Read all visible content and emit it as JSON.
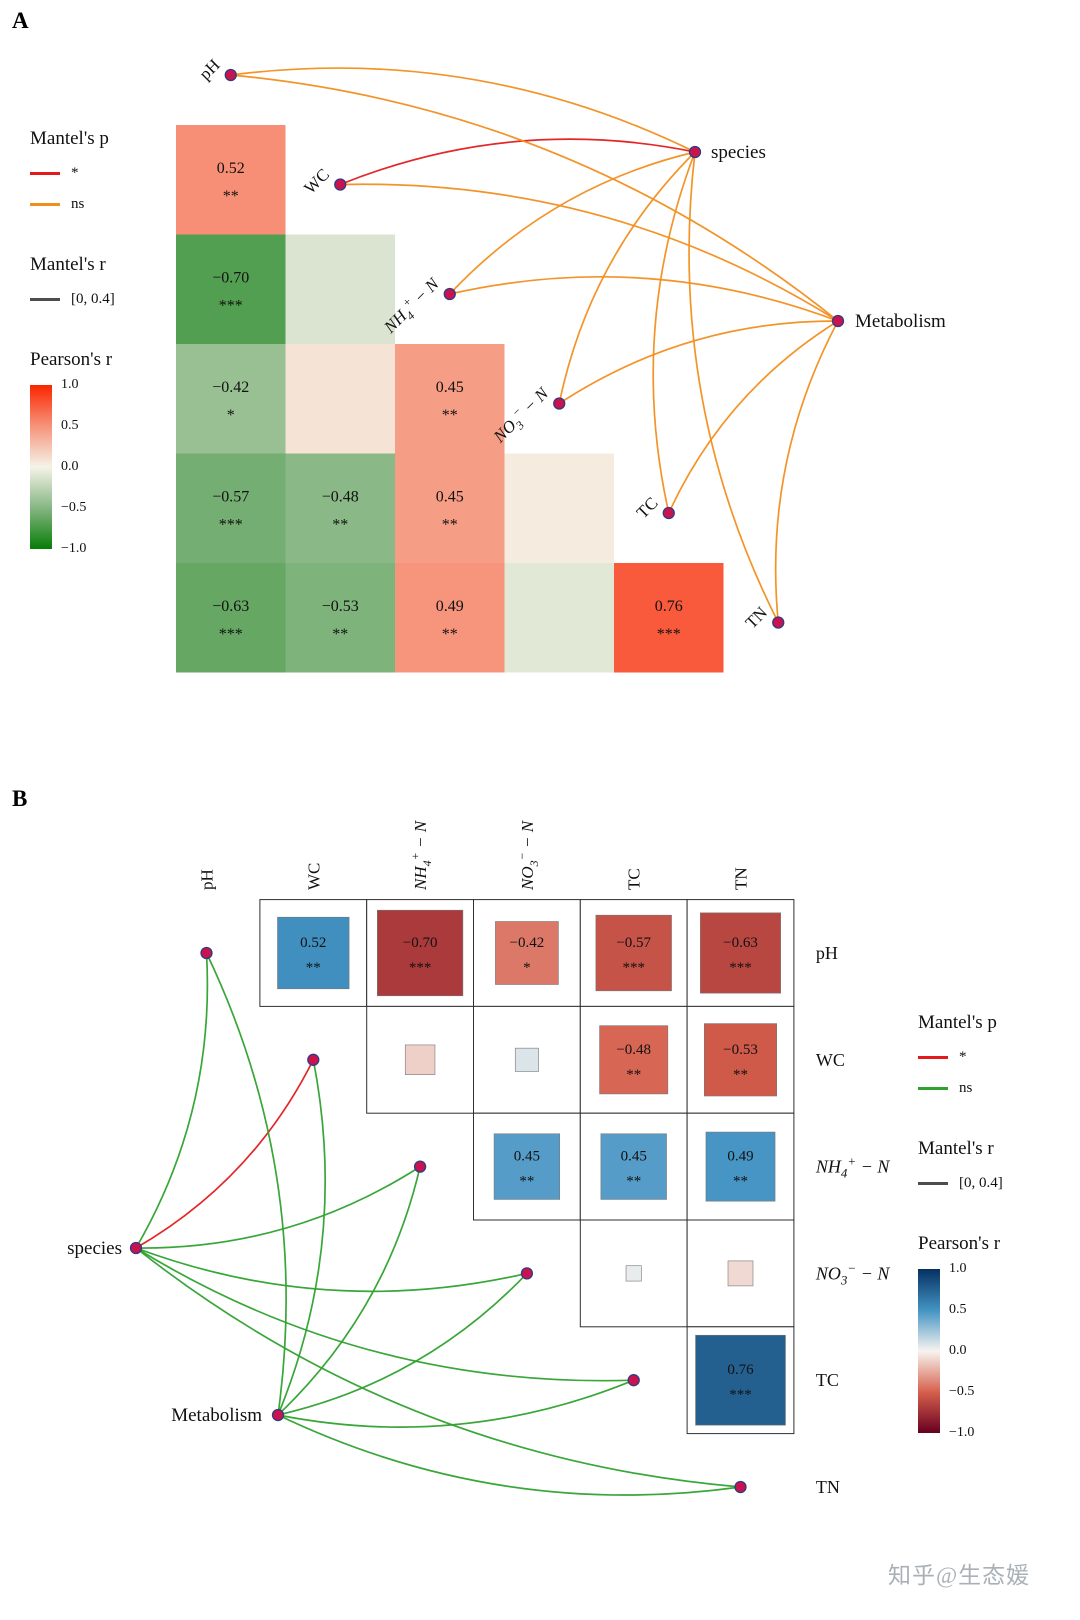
{
  "watermark": {
    "text": "知乎@生态媛"
  },
  "panel_a": {
    "label": "A",
    "heat_stops": [
      {
        "v": -1.0,
        "c": "#067d06"
      },
      {
        "v": -0.5,
        "c": "#86b683"
      },
      {
        "v": 0.0,
        "c": "#f5f3e8"
      },
      {
        "v": 0.5,
        "c": "#f6937a"
      },
      {
        "v": 1.0,
        "c": "#fb2500"
      }
    ],
    "network": {
      "sig_color": "#e31a1c",
      "ns_color": "#f28e1c",
      "node_fill": "#c9134f",
      "node_stroke": "#333a80"
    },
    "legend": {
      "mantel_p_title": "Mantel's p",
      "mantel_p_items": [
        {
          "label": "*",
          "color": "#e31a1c"
        },
        {
          "label": "ns",
          "color": "#f28e1c"
        }
      ],
      "mantel_r_title": "Mantel's r",
      "mantel_r_items": [
        {
          "label": "[0, 0.4]",
          "color": "#4d4d4d"
        }
      ],
      "pearson_title": "Pearson's r",
      "pearson_ticks": [
        "1.0",
        "0.5",
        "0.0",
        "−0.5",
        "−1.0"
      ]
    }
  },
  "panel_b": {
    "label": "B",
    "heat_stops": [
      {
        "v": -1.0,
        "c": "#67001f"
      },
      {
        "v": -0.5,
        "c": "#d6604d"
      },
      {
        "v": 0.0,
        "c": "#f7f4f0"
      },
      {
        "v": 0.5,
        "c": "#4393c3"
      },
      {
        "v": 1.0,
        "c": "#053061"
      }
    ],
    "network": {
      "sig_color": "#e31a1c",
      "ns_color": "#2ea12e",
      "node_fill": "#c9134f",
      "node_stroke": "#333a80"
    },
    "legend": {
      "mantel_p_title": "Mantel's p",
      "mantel_p_items": [
        {
          "label": "*",
          "color": "#e31a1c"
        },
        {
          "label": "ns",
          "color": "#2ea12e"
        }
      ],
      "mantel_r_title": "Mantel's r",
      "mantel_r_items": [
        {
          "label": "[0, 0.4]",
          "color": "#4d4d4d"
        }
      ],
      "pearson_title": "Pearson's r",
      "pearson_ticks": [
        "1.0",
        "0.5",
        "0.0",
        "−0.5",
        "−1.0"
      ]
    }
  },
  "chart_data": {
    "type": "heatmap",
    "subtype": "mantel-test-network-with-pearson-correlation",
    "panels": [
      "A",
      "B"
    ],
    "colorbar_range": [
      -1,
      1
    ],
    "groups": [
      "species",
      "Metabolism"
    ],
    "variables": [
      {
        "id": "pH",
        "label": "pH",
        "italic": false,
        "parts": [
          {
            "t": "pH"
          }
        ]
      },
      {
        "id": "WC",
        "label": "WC",
        "italic": false,
        "parts": [
          {
            "t": "WC"
          }
        ]
      },
      {
        "id": "NH4",
        "label": "NH4+-N",
        "italic": true,
        "parts": [
          {
            "t": "NH"
          },
          {
            "t": "4",
            "sub": true
          },
          {
            "t": "+",
            "sup": true
          },
          {
            "t": " − N"
          }
        ]
      },
      {
        "id": "NO3",
        "label": "NO3--N",
        "italic": true,
        "parts": [
          {
            "t": "NO"
          },
          {
            "t": "3",
            "sub": true
          },
          {
            "t": "−",
            "sup": true
          },
          {
            "t": " − N"
          }
        ]
      },
      {
        "id": "TC",
        "label": "TC",
        "italic": false,
        "parts": [
          {
            "t": "TC"
          }
        ]
      },
      {
        "id": "TN",
        "label": "TN",
        "italic": false,
        "parts": [
          {
            "t": "TN"
          }
        ]
      }
    ],
    "pearson_r": [
      {
        "var1": "WC",
        "var2": "pH",
        "r": 0.52,
        "sig": "**",
        "labeled": true
      },
      {
        "var1": "NH4+-N",
        "var2": "pH",
        "r": -0.7,
        "sig": "***",
        "labeled": true
      },
      {
        "var1": "NH4+-N",
        "var2": "WC",
        "r": -0.12,
        "sig": "",
        "labeled": false
      },
      {
        "var1": "NO3--N",
        "var2": "pH",
        "r": -0.42,
        "sig": "*",
        "labeled": true
      },
      {
        "var1": "NO3--N",
        "var2": "WC",
        "r": 0.08,
        "sig": "",
        "labeled": false
      },
      {
        "var1": "NO3--N",
        "var2": "NH4+-N",
        "r": 0.45,
        "sig": "**",
        "labeled": true
      },
      {
        "var1": "TC",
        "var2": "pH",
        "r": -0.57,
        "sig": "***",
        "labeled": true
      },
      {
        "var1": "TC",
        "var2": "WC",
        "r": -0.48,
        "sig": "**",
        "labeled": true
      },
      {
        "var1": "TC",
        "var2": "NH4+-N",
        "r": 0.45,
        "sig": "**",
        "labeled": true
      },
      {
        "var1": "TC",
        "var2": "NO3--N",
        "r": 0.04,
        "sig": "",
        "labeled": false
      },
      {
        "var1": "TN",
        "var2": "pH",
        "r": -0.63,
        "sig": "***",
        "labeled": true
      },
      {
        "var1": "TN",
        "var2": "WC",
        "r": -0.53,
        "sig": "**",
        "labeled": true
      },
      {
        "var1": "TN",
        "var2": "NH4+-N",
        "r": 0.49,
        "sig": "**",
        "labeled": true
      },
      {
        "var1": "TN",
        "var2": "NO3--N",
        "r": -0.09,
        "sig": "",
        "labeled": false
      },
      {
        "var1": "TN",
        "var2": "TC",
        "r": 0.76,
        "sig": "***",
        "labeled": true
      }
    ],
    "mantel_edges": [
      {
        "from": "species",
        "to": "pH",
        "p": "ns"
      },
      {
        "from": "species",
        "to": "WC",
        "p": "*"
      },
      {
        "from": "species",
        "to": "NH4+-N",
        "p": "ns"
      },
      {
        "from": "species",
        "to": "NO3--N",
        "p": "ns"
      },
      {
        "from": "species",
        "to": "TC",
        "p": "ns"
      },
      {
        "from": "species",
        "to": "TN",
        "p": "ns"
      },
      {
        "from": "Metabolism",
        "to": "pH",
        "p": "ns"
      },
      {
        "from": "Metabolism",
        "to": "WC",
        "p": "ns"
      },
      {
        "from": "Metabolism",
        "to": "NH4+-N",
        "p": "ns"
      },
      {
        "from": "Metabolism",
        "to": "NO3--N",
        "p": "ns"
      },
      {
        "from": "Metabolism",
        "to": "TC",
        "p": "ns"
      },
      {
        "from": "Metabolism",
        "to": "TN",
        "p": "ns"
      }
    ]
  }
}
